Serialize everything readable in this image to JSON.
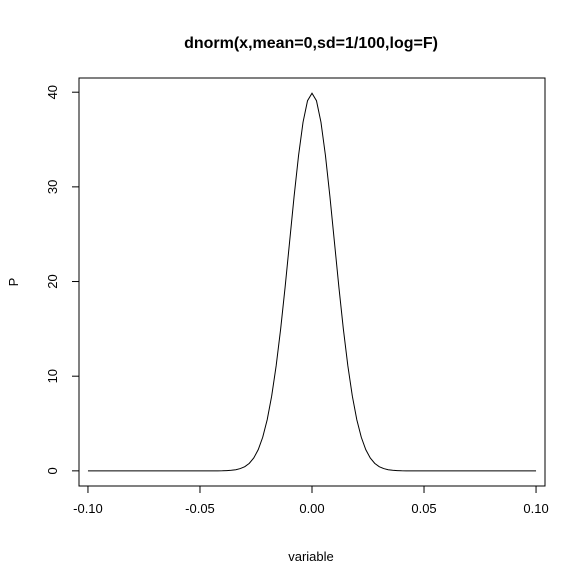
{
  "chart_data": {
    "type": "line",
    "title": "dnorm(x,mean=0,sd=1/100,log=F)",
    "xlabel": "variable",
    "ylabel": "P",
    "xlim": [
      -0.104,
      0.104
    ],
    "ylim": [
      -1.6,
      41.5
    ],
    "xticks": [
      -0.1,
      -0.05,
      0.0,
      0.05,
      0.1
    ],
    "xtick_labels": [
      "-0.10",
      "-0.05",
      "0.00",
      "0.05",
      "0.10"
    ],
    "yticks": [
      0,
      10,
      20,
      30,
      40
    ],
    "ytick_labels": [
      "0",
      "10",
      "20",
      "30",
      "40"
    ],
    "grid": false,
    "legend": "none",
    "line_color": "#000000",
    "series": [
      {
        "x": [
          -0.1,
          -0.098,
          -0.096,
          -0.094,
          -0.092,
          -0.09,
          -0.088,
          -0.086,
          -0.084,
          -0.082,
          -0.08,
          -0.078,
          -0.076,
          -0.074,
          -0.072,
          -0.07,
          -0.068,
          -0.066,
          -0.064,
          -0.062,
          -0.06,
          -0.058,
          -0.056,
          -0.054,
          -0.052,
          -0.05,
          -0.048,
          -0.046,
          -0.044,
          -0.042,
          -0.04,
          -0.038,
          -0.036,
          -0.034,
          -0.032,
          -0.03,
          -0.028,
          -0.026,
          -0.024,
          -0.022,
          -0.02,
          -0.018,
          -0.016,
          -0.014,
          -0.012,
          -0.01,
          -0.008,
          -0.006,
          -0.004,
          -0.002,
          0.0,
          0.002,
          0.004,
          0.006,
          0.008,
          0.01,
          0.012,
          0.014,
          0.016,
          0.018,
          0.02,
          0.022,
          0.024,
          0.026,
          0.028,
          0.03,
          0.032,
          0.034,
          0.036,
          0.038,
          0.04,
          0.042,
          0.044,
          0.046,
          0.048,
          0.05,
          0.052,
          0.054,
          0.056,
          0.058,
          0.06,
          0.062,
          0.064,
          0.066,
          0.068,
          0.07,
          0.072,
          0.074,
          0.076,
          0.078,
          0.08,
          0.082,
          0.084,
          0.086,
          0.088,
          0.09,
          0.092,
          0.094,
          0.096,
          0.098,
          0.1
        ],
        "y": [
          0.0,
          0.0,
          0.0,
          0.0,
          0.0,
          0.0,
          0.0,
          0.0,
          0.0,
          0.0,
          0.0,
          0.0,
          0.0,
          0.0,
          0.0,
          0.0,
          0.0,
          0.0,
          0.0,
          0.0,
          0.0,
          0.0,
          0.0,
          0.0,
          0.0,
          0.0,
          0.0,
          0.0,
          0.0,
          0.0,
          0.01,
          0.03,
          0.06,
          0.12,
          0.24,
          0.44,
          0.79,
          1.36,
          2.24,
          3.55,
          5.4,
          7.9,
          11.09,
          14.97,
          19.42,
          24.2,
          28.97,
          33.32,
          36.83,
          39.1,
          39.89,
          39.1,
          36.83,
          33.32,
          28.97,
          24.2,
          19.42,
          14.97,
          11.09,
          7.9,
          5.4,
          3.55,
          2.24,
          1.36,
          0.79,
          0.44,
          0.24,
          0.12,
          0.06,
          0.03,
          0.01,
          0.0,
          0.0,
          0.0,
          0.0,
          0.0,
          0.0,
          0.0,
          0.0,
          0.0,
          0.0,
          0.0,
          0.0,
          0.0,
          0.0,
          0.0,
          0.0,
          0.0,
          0.0,
          0.0,
          0.0,
          0.0,
          0.0,
          0.0,
          0.0,
          0.0,
          0.0,
          0.0,
          0.0,
          0.0,
          0.0
        ]
      }
    ]
  }
}
